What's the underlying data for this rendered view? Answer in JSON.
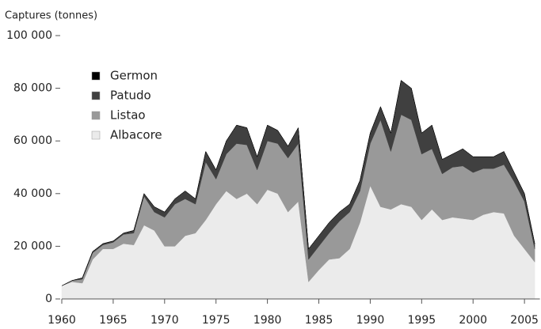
{
  "chart_data": {
    "type": "stacked-area",
    "y_label": "Captures (tonnes)",
    "x": [
      1960,
      1961,
      1962,
      1963,
      1964,
      1965,
      1966,
      1967,
      1968,
      1969,
      1970,
      1971,
      1972,
      1973,
      1974,
      1975,
      1976,
      1977,
      1978,
      1979,
      1980,
      1981,
      1982,
      1983,
      1984,
      1985,
      1986,
      1987,
      1988,
      1989,
      1990,
      1991,
      1992,
      1993,
      1994,
      1995,
      1996,
      1997,
      1998,
      1999,
      2000,
      2001,
      2002,
      2003,
      2004,
      2005,
      2006
    ],
    "series": [
      {
        "name": "Albacore",
        "color": "#ebebeb",
        "values": [
          5000,
          6500,
          6000,
          15000,
          19000,
          19000,
          21000,
          20500,
          28000,
          26000,
          20000,
          20000,
          24000,
          25000,
          30000,
          36000,
          41000,
          38000,
          40000,
          36000,
          41500,
          40000,
          33000,
          37000,
          6500,
          11000,
          15000,
          15500,
          19000,
          29000,
          43000,
          35000,
          34000,
          36000,
          35000,
          30000,
          34000,
          30000,
          31000,
          30500,
          30000,
          32000,
          33000,
          32500,
          24000,
          19000,
          14000
        ]
      },
      {
        "name": "Listao",
        "color": "#999999",
        "values": [
          0,
          500,
          1500,
          2500,
          1500,
          2500,
          3500,
          4500,
          11000,
          7000,
          11000,
          16000,
          14000,
          11000,
          22000,
          9500,
          14000,
          21000,
          18500,
          13000,
          18500,
          19000,
          20500,
          22000,
          8500,
          9000,
          10000,
          14000,
          14000,
          12000,
          16000,
          33000,
          22000,
          34000,
          33000,
          25000,
          23000,
          17500,
          19000,
          20000,
          18000,
          17500,
          16500,
          18500,
          20500,
          18000,
          5000
        ]
      },
      {
        "name": "Patudo",
        "color": "#404040",
        "values": [
          0,
          0,
          500,
          500,
          500,
          500,
          500,
          1000,
          1000,
          2000,
          2000,
          2000,
          3000,
          2000,
          4000,
          3500,
          5000,
          7000,
          6500,
          5000,
          6000,
          5000,
          4500,
          6000,
          4000,
          4000,
          4000,
          3500,
          3000,
          4000,
          4000,
          5000,
          7000,
          13000,
          12000,
          8000,
          9000,
          5500,
          5000,
          6500,
          6000,
          4500,
          4500,
          5000,
          3500,
          3000,
          2000
        ]
      },
      {
        "name": "Germon",
        "color": "#000000",
        "values": [
          0,
          0,
          0,
          0,
          0,
          0,
          0,
          0,
          0,
          0,
          0,
          0,
          0,
          0,
          0,
          0,
          0,
          0,
          0,
          0,
          0,
          0,
          0,
          0,
          0,
          0,
          0,
          0,
          0,
          0,
          0,
          0,
          0,
          0,
          0,
          0,
          0,
          0,
          0,
          0,
          0,
          0,
          0,
          0,
          0,
          0,
          0
        ]
      }
    ],
    "xlim": [
      1960,
      2006.5
    ],
    "xticks": [
      1960,
      1965,
      1970,
      1975,
      1980,
      1985,
      1990,
      1995,
      2000,
      2005
    ],
    "ylim": [
      0,
      100000
    ],
    "yticks": [
      0,
      {
        "value": 20000,
        "label": "20 000"
      },
      {
        "value": 40000,
        "label": "40 000"
      },
      {
        "value": 60000,
        "label": "60 000"
      },
      {
        "value": 80000,
        "label": "80 000"
      },
      {
        "value": 100000,
        "label": "100 000"
      }
    ],
    "legend": "upper-left"
  }
}
